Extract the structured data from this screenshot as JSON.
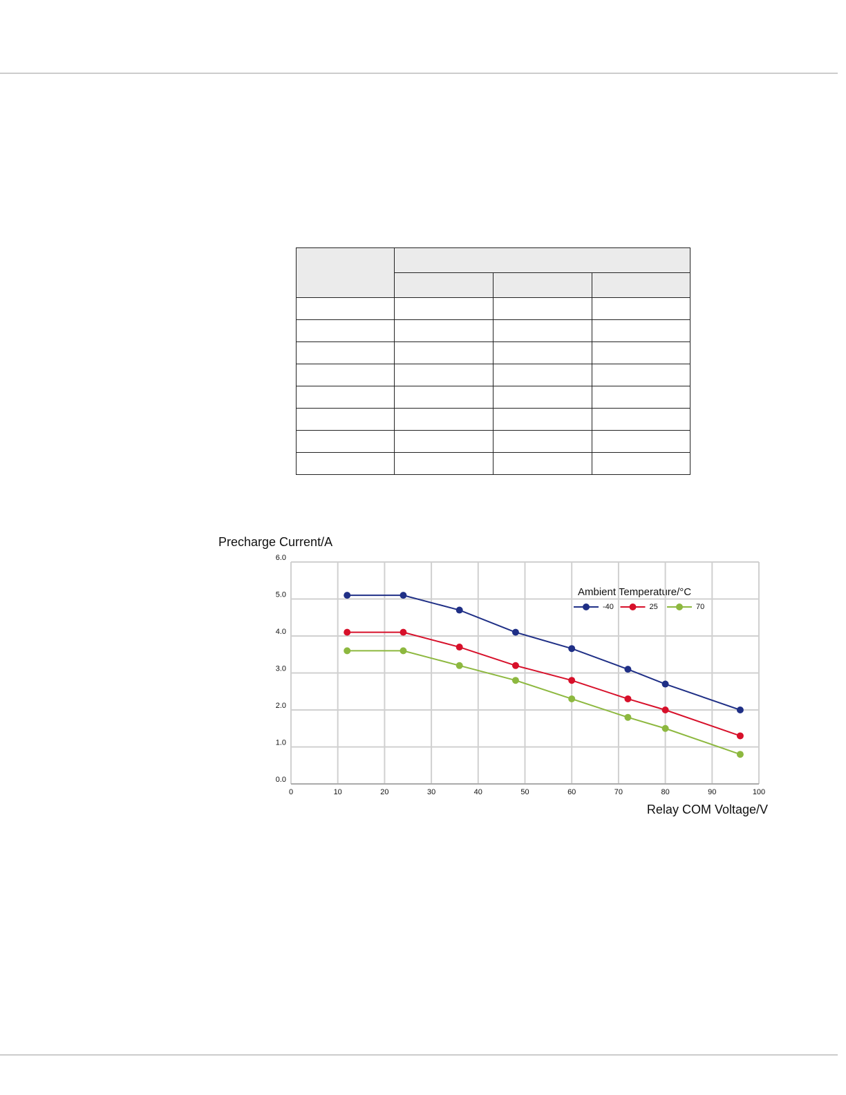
{
  "chart_data": {
    "type": "line",
    "y_label": "Precharge Current/A",
    "x_label": "Relay COM Voltage/V",
    "legend_title": "Ambient Temperature/°C",
    "x": [
      12,
      24,
      36,
      48,
      60,
      72,
      80,
      96
    ],
    "series": [
      {
        "name": "-40",
        "color": "#1f2f86",
        "values": [
          5.1,
          5.1,
          4.7,
          4.1,
          3.66,
          3.1,
          2.7,
          2.0
        ]
      },
      {
        "name": "25",
        "color": "#d7102a",
        "values": [
          4.1,
          4.1,
          3.7,
          3.2,
          2.8,
          2.3,
          2.0,
          1.3
        ]
      },
      {
        "name": "70",
        "color": "#8db83f",
        "values": [
          3.6,
          3.6,
          3.2,
          2.8,
          2.3,
          1.8,
          1.5,
          0.8
        ]
      }
    ],
    "xlim": [
      0,
      100
    ],
    "xticks": [
      0,
      10,
      20,
      30,
      40,
      50,
      60,
      70,
      80,
      90,
      100
    ],
    "ylim": [
      0,
      6
    ],
    "yticks": [
      {
        "value": 0,
        "label": "0.0"
      },
      {
        "value": 1,
        "label": "1.0"
      },
      {
        "value": 2,
        "label": "2.0"
      },
      {
        "value": 3,
        "label": "3.0"
      },
      {
        "value": 4,
        "label": "4.0"
      },
      {
        "value": 5,
        "label": "5.0"
      },
      {
        "value": 6,
        "label": "6.0"
      }
    ],
    "grid": true
  }
}
